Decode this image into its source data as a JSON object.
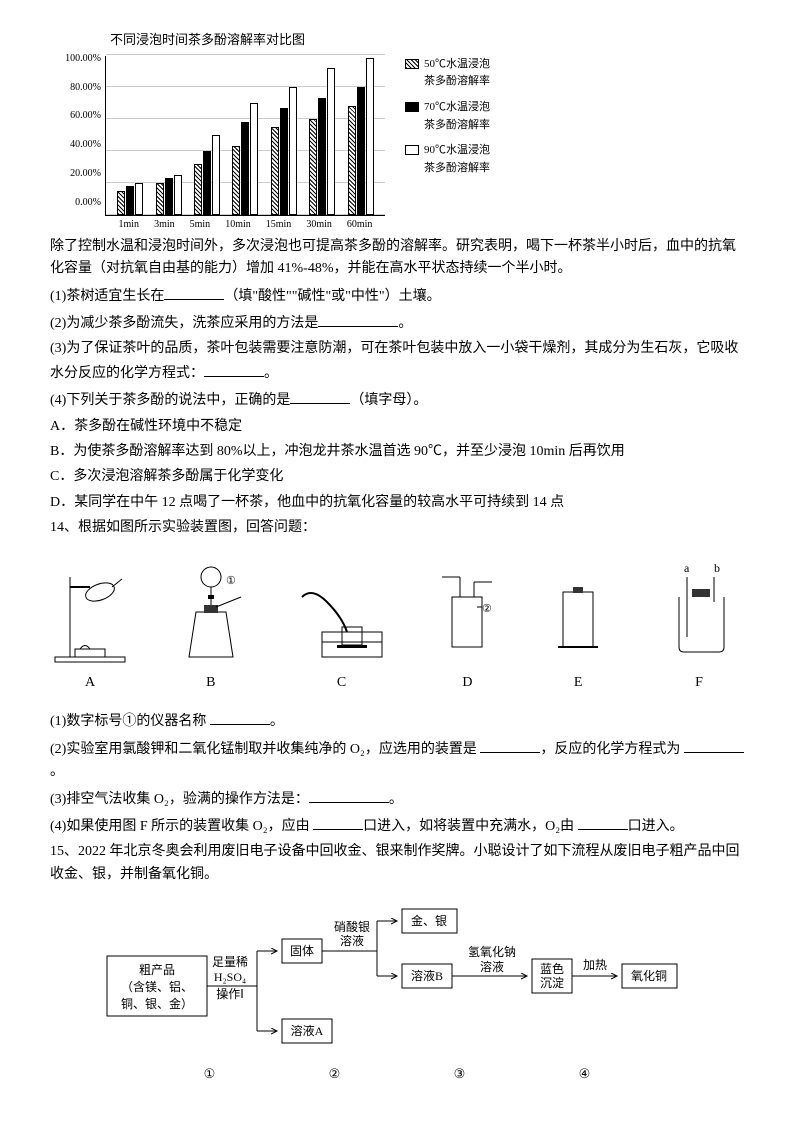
{
  "chart": {
    "title": "不同浸泡时间茶多酚溶解率对比图",
    "y_labels": [
      "100.00%",
      "80.00%",
      "60.00%",
      "40.00%",
      "20.00%",
      "0.00%"
    ],
    "x_labels": [
      "1min",
      "3min",
      "5min",
      "10min",
      "15min",
      "30min",
      "60min"
    ],
    "gridline_positions": [
      0,
      20,
      40,
      60,
      80,
      100
    ],
    "series": [
      {
        "name": "50℃水温浸泡\n茶多酚溶解率",
        "style": "hatched",
        "values": [
          15,
          20,
          32,
          43,
          55,
          60,
          68
        ]
      },
      {
        "name": "70℃水温浸泡\n茶多酚溶解率",
        "style": "solid",
        "values": [
          18,
          23,
          40,
          58,
          67,
          73,
          80
        ]
      },
      {
        "name": "90℃水温浸泡\n茶多酚溶解率",
        "style": "empty",
        "values": [
          20,
          25,
          50,
          70,
          80,
          92,
          98
        ]
      }
    ]
  },
  "para1": "除了控制水温和浸泡时间外，多次浸泡也可提高茶多酚的溶解率。研究表明，喝下一杯茶半小时后，血中的抗氧化容量（对抗氧自由基的能力）增加 41%-48%，并能在高水平状态持续一个半小时。",
  "q1_pre": "(1)茶树适宜生长在",
  "q1_post": "（填\"酸性\"\"碱性\"或\"中性\"）土壤。",
  "q2_pre": "(2)为减少茶多酚流失，洗茶应采用的方法是",
  "q2_post": "。",
  "q3_pre": "(3)为了保证茶叶的品质，茶叶包装需要注意防潮，可在茶叶包装中放入一小袋干燥剂，其成分为生石灰，它吸收水分反应的化学方程式：",
  "q3_post": "。",
  "q4_pre": "(4)下列关于茶多酚的说法中，正确的是",
  "q4_post": "（填字母）。",
  "optA": "A．茶多酚在碱性环境中不稳定",
  "optB": "B．为使茶多酚溶解率达到 80%以上，冲泡龙井茶水温首选 90℃，并至少浸泡 10min 后再饮用",
  "optC": "C．多次浸泡溶解茶多酚属于化学变化",
  "optD": "D．某同学在中午 12 点喝了一杯茶，他血中的抗氧化容量的较高水平可持续到 14 点",
  "q14": "14、根据如图所示实验装置图，回答问题：",
  "apparatus_labels": [
    "A",
    "B",
    "C",
    "D",
    "E",
    "F"
  ],
  "apparatus_ab": {
    "a": "a",
    "b": "b"
  },
  "circled1": "①",
  "circled2": "②",
  "q14_1_pre": "(1)数字标号①的仪器名称 ",
  "q14_1_post": "。",
  "q14_2_pre": "(2)实验室用氯酸钾和二氧化锰制取并收集纯净的 O₂，应选用的装置是 ",
  "q14_2_mid": "，反应的化学方程式为 ",
  "q14_2_post": "。",
  "q14_3_pre": "(3)排空气法收集 O₂，验满的操作方法是：",
  "q14_3_post": "。",
  "q14_4_pre": "(4)如果使用图 F 所示的装置收集 O₂，应由 ",
  "q14_4_mid": "口进入，如将装置中充满水，O₂由 ",
  "q14_4_post": "口进入。",
  "q15": "15、2022 年北京冬奥会利用废旧电子设备中回收金、银来制作奖牌。小聪设计了如下流程从废旧电子粗产品中回收金、银，并制备氧化铜。",
  "flow": {
    "box1_l1": "粗产品",
    "box1_l2": "（含镁、铝、",
    "box1_l3": "铜、银、金）",
    "label1": "足量稀",
    "label2": "H₂SO₄",
    "label3": "操作Ⅰ",
    "solid": "固体",
    "solutionA": "溶液A",
    "silver_nitrate_l1": "硝酸银",
    "silver_nitrate_l2": "溶液",
    "gold_silver": "金、银",
    "solutionB": "溶液B",
    "naoh_l1": "氢氧化钠",
    "naoh_l2": "溶液",
    "blue_l1": "蓝色",
    "blue_l2": "沉淀",
    "heat": "加热",
    "cuo": "氧化铜",
    "nums": [
      "①",
      "②",
      "③",
      "④"
    ]
  }
}
